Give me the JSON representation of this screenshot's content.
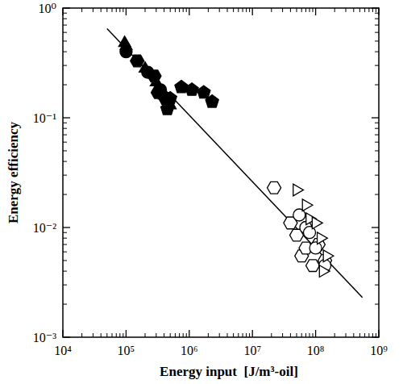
{
  "chart_data": {
    "type": "scatter",
    "x_label": "Energy input  [J/m³-oil]",
    "y_label": "Energy efficiency",
    "log": true,
    "grid": false,
    "xlim": [
      10000,
      1000000000
    ],
    "ylim": [
      0.001,
      1
    ],
    "xticks": [
      {
        "value": 10000,
        "label": "10⁴"
      },
      {
        "value": 100000,
        "label": "10⁵"
      },
      {
        "value": 1000000,
        "label": "10⁶"
      },
      {
        "value": 10000000,
        "label": "10⁷"
      },
      {
        "value": 100000000,
        "label": "10⁸"
      },
      {
        "value": 1000000000,
        "label": "10⁹"
      }
    ],
    "yticks": [
      {
        "value": 0.001,
        "label": "10⁻³"
      },
      {
        "value": 0.01,
        "label": "10⁻²"
      },
      {
        "value": 0.1,
        "label": "10⁻¹"
      },
      {
        "value": 1,
        "label": "10⁰"
      }
    ],
    "series": [
      {
        "type": "line",
        "color": "#000000",
        "line_style": "solid",
        "x": [
          50000,
          550000000
        ],
        "values": [
          0.65,
          0.0023
        ]
      },
      {
        "type": "scatter",
        "color": "#000000",
        "marker": "triangle",
        "x": [
          95000,
          100000,
          200000,
          300000,
          400000,
          500000
        ],
        "values": [
          0.48,
          0.45,
          0.28,
          0.21,
          0.16,
          0.13
        ]
      },
      {
        "type": "scatter",
        "color": "#000000",
        "marker": "circle",
        "x": [
          100000,
          220000,
          350000,
          450000
        ],
        "values": [
          0.4,
          0.26,
          0.18,
          0.14
        ]
      },
      {
        "type": "scatter",
        "color": "#000000",
        "marker": "pentagon",
        "x": [
          450000,
          500000,
          750000,
          1100000,
          1700000,
          2300000
        ],
        "values": [
          0.12,
          0.15,
          0.19,
          0.18,
          0.17,
          0.14
        ]
      },
      {
        "type": "scatter",
        "color": "#000000",
        "marker": "hexagon",
        "x": [
          150000,
          280000,
          320000,
          420000
        ],
        "values": [
          0.33,
          0.24,
          0.17,
          0.15
        ]
      },
      {
        "type": "scatter",
        "color": "#000000",
        "marker": "open-hexagon",
        "x": [
          22000000,
          40000000,
          50000000,
          60000000,
          70000000,
          90000000,
          110000000,
          140000000
        ],
        "values": [
          0.023,
          0.011,
          0.0085,
          0.0055,
          0.0065,
          0.0045,
          0.007,
          0.005
        ]
      },
      {
        "type": "scatter",
        "color": "#000000",
        "marker": "open-circle",
        "x": [
          55000000,
          70000000,
          80000000,
          100000000,
          140000000
        ],
        "values": [
          0.013,
          0.01,
          0.009,
          0.0065,
          0.0045
        ]
      },
      {
        "type": "scatter",
        "color": "#000000",
        "marker": "open-triangle-right",
        "x": [
          50000000,
          70000000,
          80000000,
          100000000,
          120000000,
          150000000,
          130000000
        ],
        "values": [
          0.022,
          0.016,
          0.012,
          0.011,
          0.008,
          0.0055,
          0.004
        ]
      }
    ]
  }
}
